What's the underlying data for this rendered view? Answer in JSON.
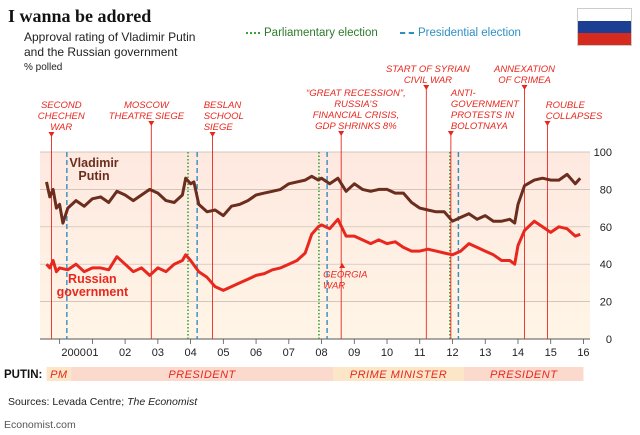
{
  "title": "I wanna be adored",
  "subtitle_line1": "Approval rating of Vladimir Putin",
  "subtitle_line2": "and the Russian government",
  "unit": "% polled",
  "legend": {
    "parliamentary": "Parliamentary election",
    "presidential": "Presidential election"
  },
  "source_prefix": "Sources: Levada Centre; ",
  "source_italic": "The Economist",
  "credit": "Economist.com",
  "colors": {
    "putin": "#6b2d1e",
    "government": "#e8281f",
    "parliamentary": "#3aa33a",
    "presidential": "#2f8fc4",
    "annotation": "#e8281f",
    "president_band": "#fbd9cc",
    "pm_band": "#fbe7c8",
    "flag": [
      "#ffffff",
      "#1c3f94",
      "#d52b1e"
    ]
  },
  "chart_data": {
    "type": "line",
    "xlabel": "",
    "ylabel": "% polled",
    "xlim": [
      1999.4,
      2016.2
    ],
    "ylim": [
      0,
      100
    ],
    "y_ticks": [
      "0",
      "20",
      "40",
      "60",
      "80",
      "100"
    ],
    "y_tick_values": [
      0,
      20,
      40,
      60,
      80,
      100
    ],
    "x_ticks": [
      "2000",
      "01",
      "02",
      "03",
      "04",
      "05",
      "06",
      "07",
      "08",
      "09",
      "10",
      "11",
      "12",
      "13",
      "14",
      "15",
      "16"
    ],
    "x_tick_values": [
      2000,
      2001,
      2002,
      2003,
      2004,
      2005,
      2006,
      2007,
      2008,
      2009,
      2010,
      2011,
      2012,
      2013,
      2014,
      2015,
      2016
    ],
    "grid": true,
    "series": [
      {
        "name": "Vladimir Putin",
        "label_lines": [
          "Vladimir",
          "Putin"
        ],
        "x": [
          1999.6,
          1999.7,
          1999.8,
          1999.9,
          2000.0,
          2000.1,
          2000.25,
          2000.5,
          2000.75,
          2001.0,
          2001.25,
          2001.5,
          2001.75,
          2002.0,
          2002.25,
          2002.5,
          2002.75,
          2003.0,
          2003.25,
          2003.5,
          2003.75,
          2003.85,
          2004.0,
          2004.1,
          2004.25,
          2004.5,
          2004.75,
          2005.0,
          2005.25,
          2005.5,
          2005.75,
          2006.0,
          2006.25,
          2006.5,
          2006.75,
          2007.0,
          2007.25,
          2007.5,
          2007.7,
          2007.9,
          2008.0,
          2008.25,
          2008.5,
          2008.75,
          2009.0,
          2009.25,
          2009.5,
          2009.75,
          2010.0,
          2010.25,
          2010.5,
          2010.75,
          2011.0,
          2011.25,
          2011.5,
          2011.75,
          2012.0,
          2012.25,
          2012.5,
          2012.75,
          2013.0,
          2013.25,
          2013.5,
          2013.75,
          2013.9,
          2014.0,
          2014.2,
          2014.5,
          2014.75,
          2015.0,
          2015.25,
          2015.5,
          2015.75,
          2015.9
        ],
        "values": [
          84,
          76,
          80,
          70,
          72,
          62,
          70,
          74,
          71,
          75,
          76,
          73,
          79,
          77,
          74,
          77,
          80,
          78,
          74,
          73,
          77,
          86,
          83,
          84,
          72,
          68,
          69,
          66,
          71,
          72,
          74,
          77,
          78,
          79,
          80,
          83,
          84,
          85,
          87,
          85,
          86,
          83,
          86,
          79,
          83,
          80,
          79,
          80,
          80,
          78,
          78,
          73,
          70,
          69,
          68,
          68,
          63,
          65,
          67,
          64,
          66,
          63,
          63,
          64,
          62,
          72,
          82,
          85,
          86,
          85,
          85,
          88,
          83,
          86
        ]
      },
      {
        "name": "Russian government",
        "label_lines": [
          "Russian",
          "government"
        ],
        "x": [
          1999.6,
          1999.7,
          1999.8,
          1999.9,
          2000.0,
          2000.25,
          2000.5,
          2000.75,
          2001.0,
          2001.25,
          2001.5,
          2001.75,
          2002.0,
          2002.25,
          2002.5,
          2002.75,
          2003.0,
          2003.25,
          2003.5,
          2003.75,
          2003.85,
          2004.0,
          2004.25,
          2004.5,
          2004.75,
          2005.0,
          2005.25,
          2005.5,
          2005.75,
          2006.0,
          2006.25,
          2006.5,
          2006.75,
          2007.0,
          2007.25,
          2007.5,
          2007.7,
          2007.9,
          2008.0,
          2008.25,
          2008.5,
          2008.75,
          2009.0,
          2009.25,
          2009.5,
          2009.75,
          2010.0,
          2010.25,
          2010.5,
          2010.75,
          2011.0,
          2011.25,
          2011.5,
          2011.75,
          2012.0,
          2012.25,
          2012.5,
          2012.75,
          2013.0,
          2013.25,
          2013.5,
          2013.75,
          2013.9,
          2014.0,
          2014.2,
          2014.5,
          2014.75,
          2015.0,
          2015.25,
          2015.5,
          2015.75,
          2015.9
        ],
        "values": [
          40,
          38,
          42,
          36,
          38,
          37,
          40,
          36,
          38,
          38,
          37,
          44,
          40,
          36,
          38,
          34,
          38,
          36,
          40,
          42,
          45,
          42,
          36,
          33,
          28,
          26,
          28,
          30,
          32,
          34,
          35,
          37,
          38,
          40,
          42,
          46,
          56,
          60,
          61,
          59,
          64,
          55,
          55,
          53,
          51,
          53,
          51,
          52,
          49,
          47,
          47,
          48,
          47,
          46,
          45,
          47,
          51,
          49,
          47,
          45,
          42,
          42,
          40,
          50,
          58,
          63,
          60,
          57,
          60,
          59,
          55,
          56
        ]
      }
    ],
    "parliamentary_elections": [
      2003.92,
      2007.92,
      2011.92
    ],
    "presidential_elections": [
      2000.22,
      2004.2,
      2008.17,
      2012.18
    ],
    "annotations": [
      {
        "x": 1999.75,
        "lines": [
          "SECOND",
          "CHECHEN",
          "WAR"
        ],
        "align": "center",
        "label_x": 2000.05,
        "top_line": 1,
        "arrow_y": 55
      },
      {
        "x": 2002.8,
        "lines": [
          "MOSCOW",
          "THEATRE SIEGE"
        ],
        "align": "center",
        "label_x": 2002.65,
        "top_line": 1,
        "arrow_y": 55
      },
      {
        "x": 2004.67,
        "lines": [
          "BESLAN",
          "SCHOOL",
          "SIEGE"
        ],
        "align": "left",
        "label_x": 2004.4,
        "top_line": 1,
        "arrow_y": 55
      },
      {
        "x": 2008.6,
        "lines": [
          "“GREAT RECESSION”,",
          "RUSSIA’S",
          "FINANCIAL CRISIS,",
          "GDP SHRINKS 8%"
        ],
        "align": "center",
        "label_x": 2009.05,
        "top_line": 2,
        "arrow_y": 55
      },
      {
        "x": 2008.6,
        "lines": [
          "GEORGIA",
          "WAR"
        ],
        "align": "left",
        "label_x": 2008.05,
        "top_line": 0,
        "arrow_y": 0,
        "below": true
      },
      {
        "x": 2011.2,
        "lines": [
          "START OF SYRIAN",
          "CIVIL WAR"
        ],
        "align": "center",
        "label_x": 2011.25,
        "top_line": 3,
        "arrow_y": 55
      },
      {
        "x": 2011.95,
        "lines": [
          "ANTI-",
          "GOVERNMENT",
          "PROTESTS IN",
          "BOLOTNAYA"
        ],
        "align": "left",
        "label_x": 2011.95,
        "top_line": 4,
        "arrow_y": 55
      },
      {
        "x": 2014.2,
        "lines": [
          "ANNEXATION",
          "OF CRIMEA"
        ],
        "align": "center",
        "label_x": 2014.2,
        "top_line": 3,
        "arrow_y": 55
      },
      {
        "x": 2014.9,
        "lines": [
          "ROUBLE",
          "COLLAPSES"
        ],
        "align": "left",
        "label_x": 2014.85,
        "top_line": 1,
        "arrow_y": 55
      }
    ],
    "putin_roles": [
      {
        "label": "PM",
        "start": 1999.6,
        "end": 2000.35,
        "kind": "pm"
      },
      {
        "label": "PRESIDENT",
        "start": 2000.35,
        "end": 2008.35,
        "kind": "president"
      },
      {
        "label": "PRIME MINISTER",
        "start": 2008.35,
        "end": 2012.35,
        "kind": "pm"
      },
      {
        "label": "PRESIDENT",
        "start": 2012.35,
        "end": 2016.0,
        "kind": "president"
      }
    ],
    "role_axis_label": "PUTIN:"
  }
}
